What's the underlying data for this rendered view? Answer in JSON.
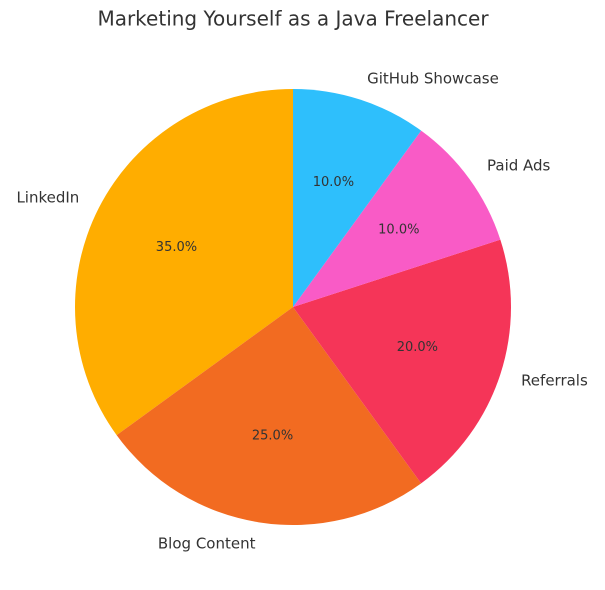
{
  "chart_data": {
    "type": "pie",
    "title": "Marketing Yourself as a Java Freelancer",
    "categories": [
      "LinkedIn",
      "Blog Content",
      "Referrals",
      "Paid Ads",
      "GitHub Showcase"
    ],
    "values": [
      35,
      25,
      20,
      10,
      10
    ],
    "value_labels": [
      "35.0%",
      "25.0%",
      "20.0%",
      "10.0%",
      "10.0%"
    ],
    "colors": [
      "#ffad00",
      "#f26b21",
      "#f53558",
      "#f95bc6",
      "#2ebffc"
    ]
  }
}
